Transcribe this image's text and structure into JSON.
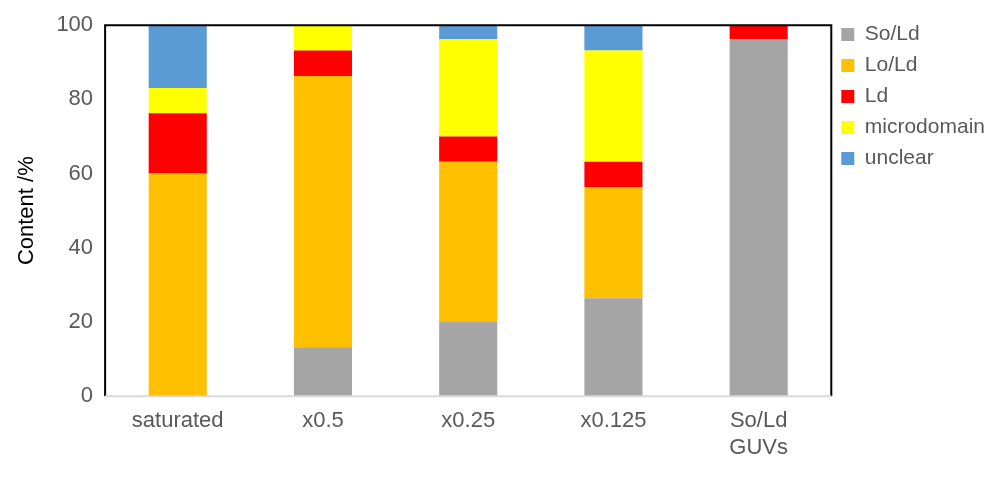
{
  "chart_data": {
    "type": "bar",
    "stacked": true,
    "ylabel": "Content /%",
    "categories": [
      "saturated",
      "x0.5",
      "x0.25",
      "x0.125",
      "So/Ld GUVs"
    ],
    "series": [
      {
        "name": "So/Ld",
        "color": "#a5a5a5",
        "values": [
          0,
          13.2,
          20,
          26.4,
          96.3
        ]
      },
      {
        "name": "Lo/Ld",
        "color": "#ffc000",
        "values": [
          60,
          73.1,
          43.2,
          30,
          0
        ]
      },
      {
        "name": "Ld",
        "color": "#ff0000",
        "values": [
          16.3,
          6.9,
          6.8,
          6.8,
          3.7
        ]
      },
      {
        "name": "microdomain",
        "color": "#ffff00",
        "values": [
          6.8,
          6.8,
          26.3,
          30,
          0
        ]
      },
      {
        "name": "unclear",
        "color": "#5b9bd5",
        "values": [
          16.9,
          0,
          3.7,
          6.8,
          0
        ]
      }
    ],
    "ylim": [
      0,
      100
    ],
    "yticks": [
      0,
      20,
      40,
      60,
      80,
      100
    ],
    "grid": false,
    "legend": "right"
  }
}
